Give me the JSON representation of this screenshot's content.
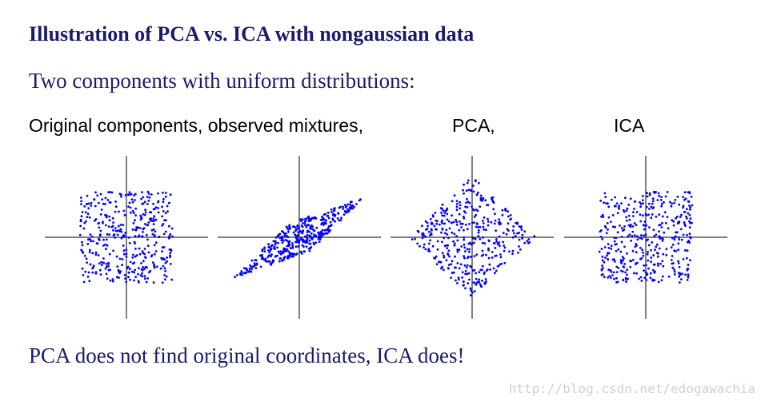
{
  "slide": {
    "title": "Illustration of PCA vs. ICA with nongaussian data",
    "subtitle": "Two components with uniform distributions:",
    "captions": {
      "original_observed": "Original components, observed mixtures,",
      "pca": "PCA,",
      "ica": "ICA"
    },
    "conclusion": "PCA does not find original coordinates, ICA does!",
    "watermark": "http://blog.csdn.net/edogawachia"
  },
  "colors": {
    "heading": "#1a1a6e",
    "points": "#0000ff",
    "axes": "#000000"
  },
  "chart_data": [
    {
      "type": "scatter",
      "panel": "original components",
      "distribution": "uniform square",
      "x_range": [
        -1,
        1
      ],
      "y_range": [
        -1,
        1
      ],
      "n_points": 400,
      "grid": false
    },
    {
      "type": "scatter",
      "panel": "observed mixtures",
      "distribution": "uniform parallelogram",
      "x_range": [
        -1,
        1
      ],
      "y_range": [
        -0.8,
        0.8
      ],
      "n_points": 400,
      "grid": false
    },
    {
      "type": "scatter",
      "panel": "PCA",
      "distribution": "uniform diamond (rotated square)",
      "x_range": [
        -1,
        1
      ],
      "y_range": [
        -1,
        1
      ],
      "n_points": 400,
      "grid": false
    },
    {
      "type": "scatter",
      "panel": "ICA",
      "distribution": "uniform square",
      "x_range": [
        -1,
        1
      ],
      "y_range": [
        -1,
        1
      ],
      "n_points": 400,
      "grid": false
    }
  ]
}
